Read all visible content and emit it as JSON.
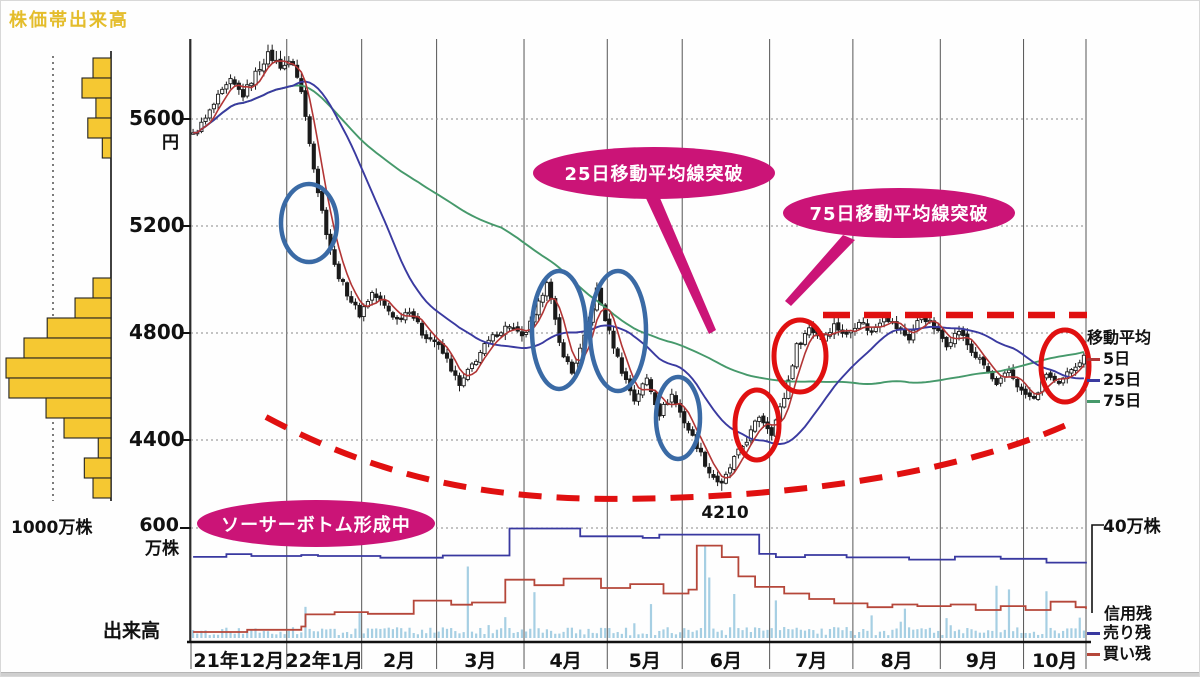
{
  "page": {
    "title": "株価帯出来高"
  },
  "colors": {
    "title_yellow": "#e4bd2c",
    "annotation_magenta": "#cb1477",
    "highlight_blue": "#3a6aa5",
    "highlight_red": "#e01010",
    "histogram_yellow": "#f5c832",
    "candle": "#1a1a1a",
    "volume_bar": "#a6cfe3",
    "grid": "#555555",
    "dotted": "#888888"
  },
  "price_axis": {
    "unit": "円",
    "ticks": [
      "5600",
      "5200",
      "4800",
      "4400"
    ]
  },
  "volume_axis": {
    "left_top": "600",
    "left_unit": "万株",
    "left_title": "出来高",
    "right_label": "40万株"
  },
  "left_histogram": {
    "unit_label": "1000万株"
  },
  "ma_legend": {
    "title": "移動平均",
    "items": [
      {
        "label": "5日",
        "color": "#b23535"
      },
      {
        "label": "25日",
        "color": "#3a3aa0"
      },
      {
        "label": "75日",
        "color": "#46996b"
      }
    ]
  },
  "margin_legend": {
    "title": "信用残",
    "items": [
      {
        "label": "売り残",
        "color": "#3939a0"
      },
      {
        "label": "買い残",
        "color": "#b5473a"
      }
    ]
  },
  "annotations": {
    "ma25_break": "25日移動平均線突破",
    "ma75_break": "75日移動平均線突破",
    "saucer_forming": "ソーサーボトム形成中",
    "low_label": "4210"
  },
  "chart_data": {
    "type": "candlestick",
    "title": "株価帯出来高",
    "price_unit": "円",
    "ylim": [
      4150,
      5900
    ],
    "price_ticks": [
      5600,
      5200,
      4800,
      4400
    ],
    "months": [
      {
        "label": "21年12月",
        "days": 23
      },
      {
        "label": "22年1月",
        "days": 18
      },
      {
        "label": "2月",
        "days": 18
      },
      {
        "label": "3月",
        "days": 21
      },
      {
        "label": "4月",
        "days": 20
      },
      {
        "label": "5月",
        "days": 18
      },
      {
        "label": "6月",
        "days": 21
      },
      {
        "label": "7月",
        "days": 20
      },
      {
        "label": "8月",
        "days": 21
      },
      {
        "label": "9月",
        "days": 20
      },
      {
        "label": "10月",
        "days": 15
      }
    ],
    "price_anchors": [
      [
        0,
        5540
      ],
      [
        3,
        5600
      ],
      [
        6,
        5680
      ],
      [
        9,
        5740
      ],
      [
        12,
        5690
      ],
      [
        15,
        5770
      ],
      [
        18,
        5840
      ],
      [
        21,
        5800
      ],
      [
        24,
        5810
      ],
      [
        26,
        5700
      ],
      [
        28,
        5520
      ],
      [
        30,
        5330
      ],
      [
        32,
        5180
      ],
      [
        34,
        5050
      ],
      [
        36,
        4980
      ],
      [
        38,
        4920
      ],
      [
        40,
        4870
      ],
      [
        43,
        4950
      ],
      [
        46,
        4900
      ],
      [
        49,
        4850
      ],
      [
        52,
        4890
      ],
      [
        55,
        4800
      ],
      [
        58,
        4770
      ],
      [
        61,
        4700
      ],
      [
        64,
        4600
      ],
      [
        67,
        4680
      ],
      [
        70,
        4750
      ],
      [
        73,
        4800
      ],
      [
        76,
        4830
      ],
      [
        79,
        4780
      ],
      [
        82,
        4860
      ],
      [
        85,
        5000
      ],
      [
        88,
        4760
      ],
      [
        91,
        4650
      ],
      [
        94,
        4780
      ],
      [
        97,
        4960
      ],
      [
        100,
        4800
      ],
      [
        103,
        4660
      ],
      [
        106,
        4550
      ],
      [
        109,
        4630
      ],
      [
        112,
        4500
      ],
      [
        115,
        4570
      ],
      [
        118,
        4470
      ],
      [
        121,
        4380
      ],
      [
        124,
        4280
      ],
      [
        127,
        4230
      ],
      [
        130,
        4330
      ],
      [
        133,
        4400
      ],
      [
        136,
        4490
      ],
      [
        139,
        4430
      ],
      [
        142,
        4560
      ],
      [
        145,
        4750
      ],
      [
        148,
        4820
      ],
      [
        151,
        4780
      ],
      [
        154,
        4830
      ],
      [
        157,
        4790
      ],
      [
        160,
        4850
      ],
      [
        163,
        4800
      ],
      [
        166,
        4870
      ],
      [
        169,
        4820
      ],
      [
        172,
        4780
      ],
      [
        175,
        4870
      ],
      [
        178,
        4820
      ],
      [
        181,
        4760
      ],
      [
        184,
        4810
      ],
      [
        187,
        4730
      ],
      [
        190,
        4680
      ],
      [
        193,
        4600
      ],
      [
        196,
        4660
      ],
      [
        199,
        4580
      ],
      [
        202,
        4550
      ],
      [
        205,
        4650
      ],
      [
        208,
        4600
      ],
      [
        211,
        4670
      ],
      [
        214,
        4710
      ]
    ],
    "low_point": {
      "day": 127,
      "price": 4210
    },
    "moving_averages": [
      {
        "label": "5日",
        "window": 5,
        "color": "#b23535"
      },
      {
        "label": "25日",
        "window": 25,
        "color": "#3a3aa0"
      },
      {
        "label": "75日",
        "window": 75,
        "color": "#46996b"
      }
    ],
    "volume": {
      "axis_top_man": 600,
      "bar_color": "#a6cfe3",
      "spikes": {
        "27": 170,
        "40": 140,
        "66": 390,
        "82": 250,
        "110": 185,
        "123": 500,
        "124": 330,
        "130": 240,
        "140": 205,
        "171": 160,
        "193": 285,
        "196": 265,
        "205": 255
      }
    },
    "margin_balance": {
      "axis_top_man": 40,
      "short": {
        "label": "売り残",
        "color": "#3939a0",
        "steps": [
          [
            0,
            29.5
          ],
          [
            8,
            30.5
          ],
          [
            14,
            29.8
          ],
          [
            26,
            30.2
          ],
          [
            30,
            29.8
          ],
          [
            43,
            29.8
          ],
          [
            45,
            29.2
          ],
          [
            58,
            29.2
          ],
          [
            60,
            30.0
          ],
          [
            74,
            30.0
          ],
          [
            76,
            39.8
          ],
          [
            91,
            39.8
          ],
          [
            93,
            37.0
          ],
          [
            108,
            36.4
          ],
          [
            112,
            37.6
          ],
          [
            133,
            37.6
          ],
          [
            136,
            30.6
          ],
          [
            140,
            29.4
          ],
          [
            147,
            30.2
          ],
          [
            155,
            30.2
          ],
          [
            157,
            29.3
          ],
          [
            170,
            29.3
          ],
          [
            172,
            28.5
          ],
          [
            181,
            28.5
          ],
          [
            183,
            29.6
          ],
          [
            192,
            29.6
          ],
          [
            194,
            28.8
          ],
          [
            202,
            28.8
          ],
          [
            205,
            27.4
          ],
          [
            215,
            27.1
          ]
        ]
      },
      "long": {
        "label": "買い残",
        "color": "#b5473a",
        "steps": [
          [
            0,
            2.2
          ],
          [
            12,
            2.2
          ],
          [
            13,
            3.0
          ],
          [
            24,
            3.0
          ],
          [
            26,
            4.2
          ],
          [
            27,
            8.6
          ],
          [
            33,
            8.6
          ],
          [
            34,
            9.4
          ],
          [
            40,
            9.4
          ],
          [
            42,
            8.8
          ],
          [
            52,
            8.8
          ],
          [
            53,
            13.6
          ],
          [
            60,
            13.6
          ],
          [
            62,
            12.1
          ],
          [
            66,
            12.1
          ],
          [
            67,
            12.9
          ],
          [
            74,
            12.9
          ],
          [
            75,
            21.2
          ],
          [
            80,
            21.2
          ],
          [
            82,
            19.2
          ],
          [
            88,
            19.2
          ],
          [
            89,
            21.6
          ],
          [
            96,
            21.6
          ],
          [
            98,
            18.2
          ],
          [
            104,
            18.2
          ],
          [
            105,
            19.6
          ],
          [
            112,
            19.6
          ],
          [
            113,
            16.2
          ],
          [
            118,
            16.2
          ],
          [
            119,
            17.6
          ],
          [
            121,
            33.6
          ],
          [
            126,
            33.6
          ],
          [
            127,
            29.4
          ],
          [
            130,
            29.4
          ],
          [
            131,
            22.4
          ],
          [
            134,
            22.4
          ],
          [
            135,
            18.6
          ],
          [
            140,
            18.6
          ],
          [
            142,
            16.2
          ],
          [
            146,
            16.2
          ],
          [
            148,
            14.2
          ],
          [
            152,
            14.2
          ],
          [
            154,
            12.6
          ],
          [
            160,
            12.6
          ],
          [
            162,
            11.2
          ],
          [
            166,
            11.2
          ],
          [
            168,
            12.2
          ],
          [
            172,
            12.2
          ],
          [
            174,
            11.6
          ],
          [
            180,
            11.6
          ],
          [
            182,
            12.2
          ],
          [
            186,
            12.2
          ],
          [
            188,
            10.2
          ],
          [
            192,
            10.2
          ],
          [
            194,
            11.6
          ],
          [
            198,
            11.6
          ],
          [
            200,
            10.2
          ],
          [
            204,
            10.2
          ],
          [
            206,
            13.2
          ],
          [
            210,
            13.2
          ],
          [
            212,
            11.2
          ],
          [
            215,
            10.6
          ]
        ]
      }
    },
    "price_band_volume": {
      "unit_label": "1000万株",
      "grid_man": 1000,
      "rows_man": [
        310,
        500,
        260,
        400,
        150,
        0,
        0,
        0,
        0,
        0,
        0,
        310,
        620,
        1100,
        1500,
        1810,
        1760,
        1120,
        810,
        220,
        460,
        310
      ]
    }
  }
}
